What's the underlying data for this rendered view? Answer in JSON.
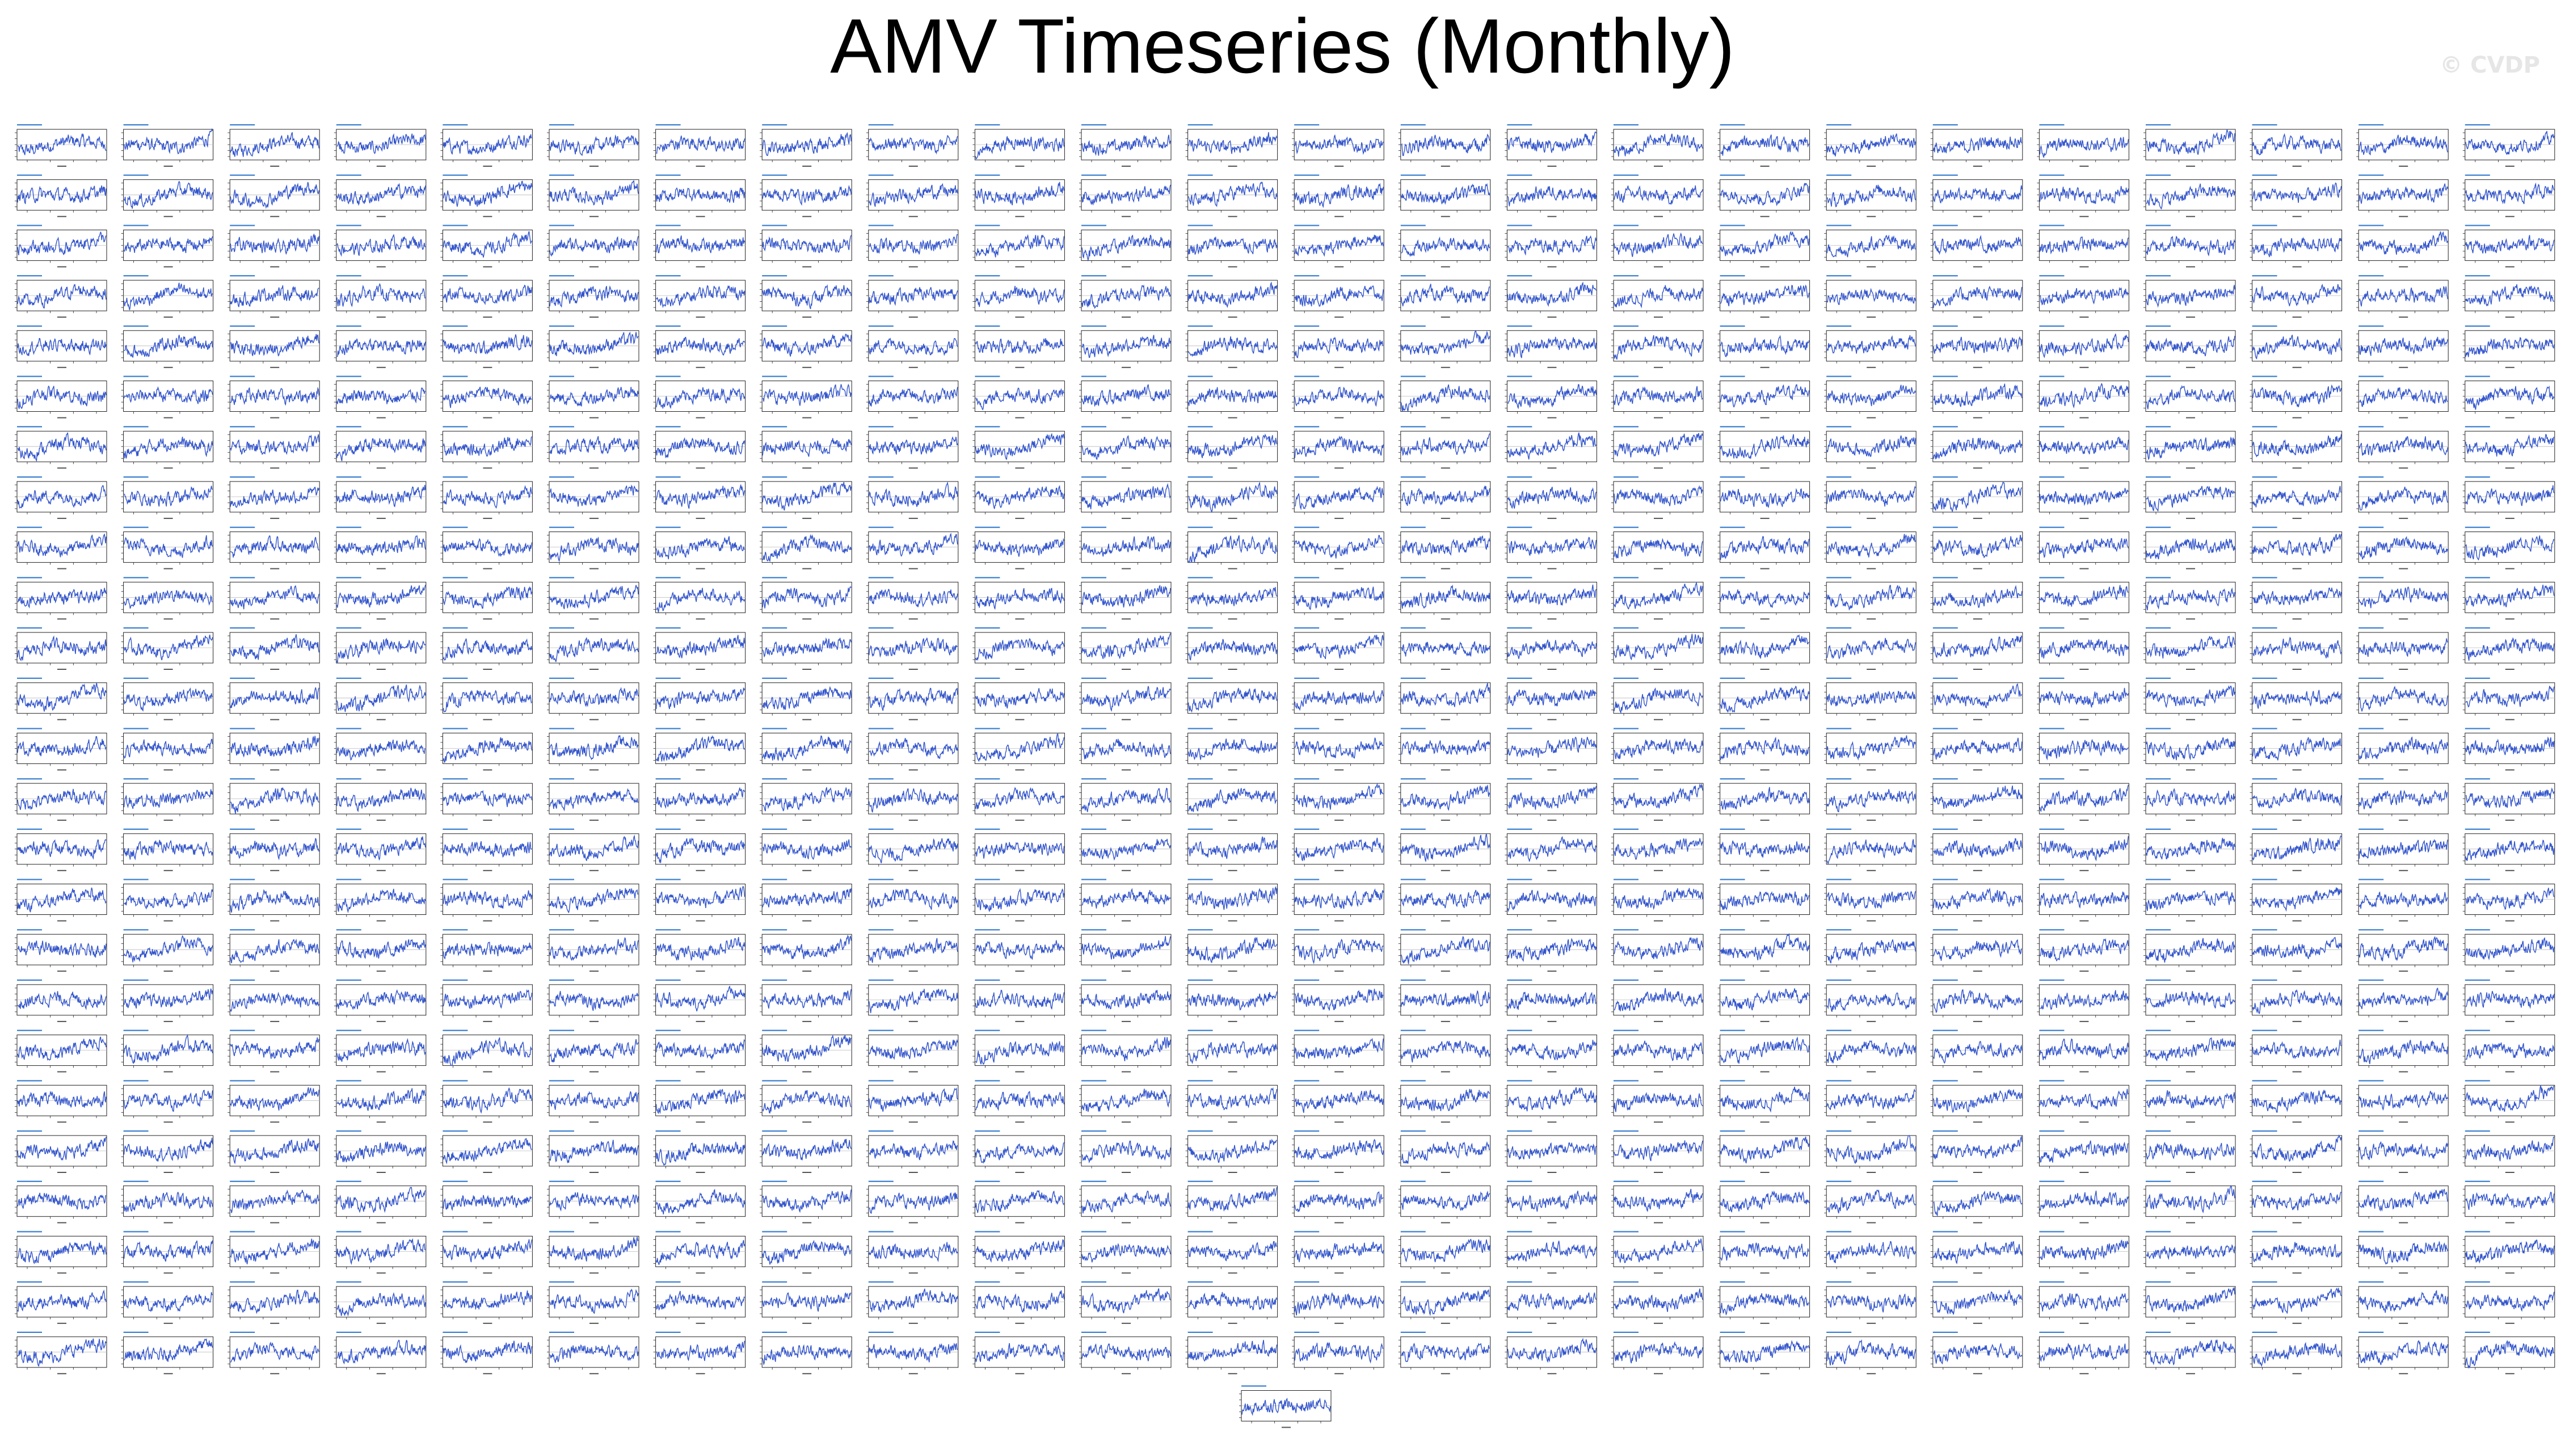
{
  "figure": {
    "title": "AMV Timeseries (Monthly)",
    "watermark": "© CVDP"
  },
  "colors": {
    "series_line": "#3355cc",
    "zero_line": "#bbbbbb",
    "panel_frame": "#222222",
    "panel_title": "#3a7fd0"
  },
  "chart_data": {
    "type": "line",
    "title": "AMV Timeseries (Monthly)",
    "panel_grid": {
      "rows": 25,
      "columns": 24,
      "extra_panels_bottom_row": 1
    },
    "panel_count": 601,
    "per_panel": {
      "series": [
        {
          "values_description": "monthly AMV index, slight positive trend, values approx between -0.4 and 0.4"
        }
      ],
      "ylim": [
        -0.5,
        0.5
      ],
      "xlabel": "",
      "ylabel": "",
      "note": "panel titles, tick labels and axis labels are not legible at this resolution"
    }
  }
}
